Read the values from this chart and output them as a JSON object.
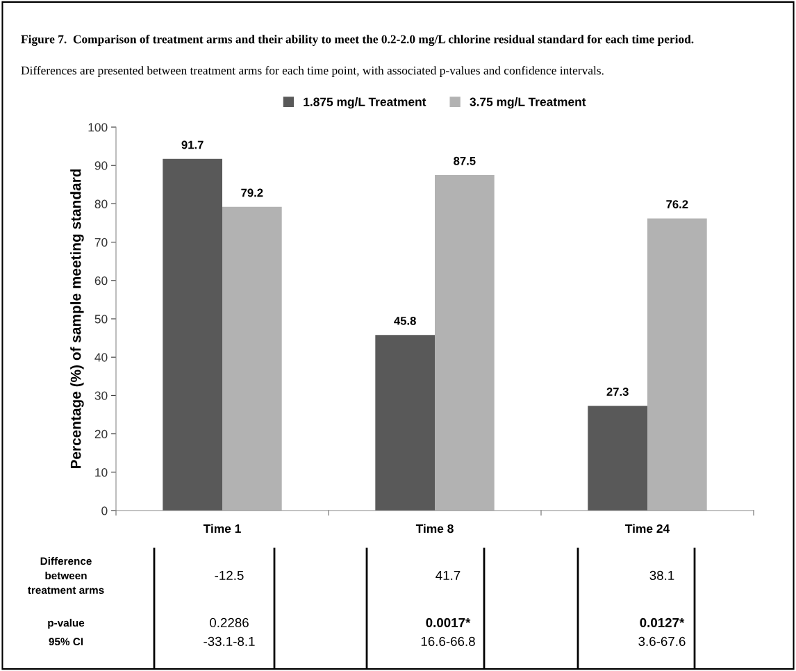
{
  "chart_data": {
    "type": "bar",
    "title": "Figure 7.  Comparison of treatment arms and their ability to meet the 0.2-2.0 mg/L chlorine residual standard for each time period.",
    "subtitle": "Differences are presented between treatment arms for each time point, with associated p-values and confidence intervals.",
    "ylabel": "Percentage (%) of sample meeting standard",
    "categories": [
      "Time 1",
      "Time 8",
      "Time 24"
    ],
    "series": [
      {
        "name": "1.875 mg/L Treatment",
        "color": "#595959",
        "values": [
          91.7,
          45.8,
          27.3
        ]
      },
      {
        "name": "3.75 mg/L Treatment",
        "color": "#b2b2b2",
        "values": [
          79.2,
          87.5,
          76.2
        ]
      }
    ],
    "ylim": [
      0,
      100
    ],
    "yticks": [
      0,
      10,
      20,
      30,
      40,
      50,
      60,
      70,
      80,
      90,
      100
    ],
    "data_labels": true,
    "legend": "top",
    "grid": false,
    "annotations": [
      "Difference\nbetween\ntreatment arms",
      "-12.5",
      "41.7",
      "38.1",
      "p-value",
      "0.2286",
      "0.0017*",
      "0.0127*",
      "95% CI",
      "-33.1-8.1",
      "16.6-66.8",
      "3.6-67.6"
    ]
  }
}
